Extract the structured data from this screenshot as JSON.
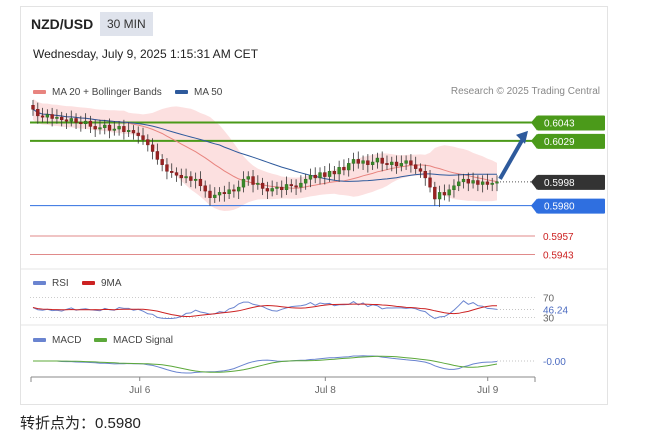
{
  "header": {
    "symbol": "NZD/USD",
    "timeframe": "30 MIN",
    "datetime": "Wednesday, July 9, 2025 1:15:31 AM CET",
    "copyright": "Research © 2025 Trading Central"
  },
  "legend": {
    "ma20": "MA 20 + Bollinger Bands",
    "ma50": "MA 50",
    "rsi": "RSI",
    "rsi9ma": "9MA",
    "macd": "MACD",
    "macd_signal": "MACD Signal"
  },
  "colors": {
    "ma20": "#e8847f",
    "ma50": "#2e5a9c",
    "bands_fill": "#fbd5d5",
    "support": "#2f6fe0",
    "target": "#4b9a1a",
    "resistance_low": "#e08a8a",
    "current": "#333333",
    "rsi": "#6a84d0",
    "rsi9ma": "#cc2222",
    "macd": "#6a84d0",
    "macd_signal": "#5ca83a"
  },
  "chart_data": [
    {
      "type": "candlestick",
      "title": "NZD/USD 30 MIN",
      "x_ticks": [
        "Jul 6",
        "Jul 8",
        "Jul 9"
      ],
      "x_tick_pos": [
        0.23,
        0.63,
        0.98
      ],
      "y_range": [
        0.5935,
        0.606
      ],
      "current_price": {
        "value": 0.5998,
        "label": "0.5998"
      },
      "levels": [
        {
          "value": 0.6043,
          "label": "0.6043",
          "kind": "target"
        },
        {
          "value": 0.6029,
          "label": "0.6029",
          "kind": "target"
        },
        {
          "value": 0.598,
          "label": "0.5980",
          "kind": "pivot"
        },
        {
          "value": 0.5957,
          "label": "0.5957",
          "kind": "resistance"
        },
        {
          "value": 0.5943,
          "label": "0.5943",
          "kind": "resistance"
        }
      ],
      "closes": [
        0.6053,
        0.6048,
        0.6047,
        0.6049,
        0.6046,
        0.6047,
        0.6045,
        0.6044,
        0.6046,
        0.6043,
        0.6042,
        0.6044,
        0.604,
        0.6038,
        0.6039,
        0.6041,
        0.6037,
        0.6038,
        0.604,
        0.6036,
        0.6037,
        0.6035,
        0.6033,
        0.603,
        0.6026,
        0.6021,
        0.6015,
        0.6011,
        0.6006,
        0.6005,
        0.6003,
        0.6001,
        0.6002,
        0.5999,
        0.6,
        0.5995,
        0.5991,
        0.5986,
        0.5988,
        0.599,
        0.5989,
        0.5992,
        0.5991,
        0.5994,
        0.6,
        0.6002,
        0.5996,
        0.5997,
        0.5993,
        0.5991,
        0.5993,
        0.5994,
        0.5992,
        0.5996,
        0.5995,
        0.5994,
        0.5997,
        0.6,
        0.6003,
        0.6001,
        0.6005,
        0.6002,
        0.6006,
        0.6004,
        0.6009,
        0.6007,
        0.6012,
        0.6015,
        0.6012,
        0.6014,
        0.6011,
        0.6013,
        0.6016,
        0.6012,
        0.6011,
        0.6013,
        0.601,
        0.6012,
        0.6014,
        0.6011,
        0.6008,
        0.6006,
        0.6001,
        0.5994,
        0.5985,
        0.599,
        0.5988,
        0.5992,
        0.5995,
        0.5998,
        0.6,
        0.5997,
        0.5999,
        0.5996,
        0.5998,
        0.5996,
        0.5997,
        0.5998
      ],
      "forecast_arrow": {
        "from": 0.5998,
        "to": 0.6029
      }
    },
    {
      "type": "line",
      "title": "RSI",
      "levels": [
        {
          "value": 70,
          "label": "70"
        },
        {
          "value": 30,
          "label": "30"
        }
      ],
      "current": {
        "value": 46.24,
        "label": "46.24"
      },
      "y_range": [
        25,
        75
      ]
    },
    {
      "type": "line",
      "title": "MACD",
      "current": {
        "value": 0.0,
        "label": "-0.00"
      }
    }
  ],
  "footer": {
    "label": "转折点为：",
    "value": "0.5980"
  }
}
